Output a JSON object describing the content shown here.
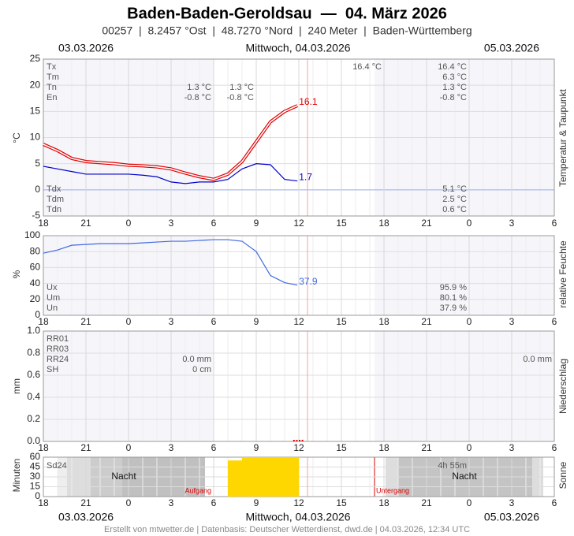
{
  "header": {
    "title": "Baden-Baden-Geroldsau  —  04. März 2026",
    "subtitle": "00257  |  8.2457 °Ost  |  48.7270 °Nord  |  240 Meter  |  Baden-Württemberg",
    "dates_top": [
      "03.03.2026",
      "Mittwoch, 04.03.2026",
      "05.03.2026"
    ],
    "dates_bottom": [
      "03.03.2026",
      "Mittwoch, 04.03.2026",
      "05.03.2026"
    ],
    "footer": "Erstellt von mtwetter.de | Datenbasis: Deutscher Wetterdienst, dwd.de | 04.03.2026, 12:34 UTC"
  },
  "chart_data": [
    {
      "type": "line",
      "ylabel": "°C",
      "side_label": "Temperatur & Taupunkt",
      "xlim": [
        0,
        36
      ],
      "xticks": [
        {
          "value": 0,
          "label": "18"
        },
        {
          "value": 3,
          "label": "21"
        },
        {
          "value": 6,
          "label": "0"
        },
        {
          "value": 9,
          "label": "3"
        },
        {
          "value": 12,
          "label": "6"
        },
        {
          "value": 15,
          "label": "9"
        },
        {
          "value": 18,
          "label": "12"
        },
        {
          "value": 21,
          "label": "15"
        },
        {
          "value": 24,
          "label": "18"
        },
        {
          "value": 27,
          "label": "21"
        },
        {
          "value": 30,
          "label": "0"
        },
        {
          "value": 33,
          "label": "3"
        },
        {
          "value": 36,
          "label": "6"
        }
      ],
      "ylim": [
        -5,
        25
      ],
      "yticks": [
        -5,
        0,
        5,
        10,
        15,
        20,
        25
      ],
      "grid": true,
      "x": [
        0,
        1,
        2,
        3,
        4,
        5,
        6,
        7,
        8,
        9,
        10,
        11,
        12,
        13,
        14,
        15,
        16,
        17,
        17.9
      ],
      "series": [
        {
          "color": "#e00000",
          "values": [
            8.7,
            7.5,
            6.0,
            5.4,
            5.2,
            5.0,
            4.7,
            4.6,
            4.4,
            4.0,
            3.2,
            2.5,
            2.0,
            3.0,
            5.4,
            9.2,
            13.0,
            15.0,
            16.1
          ]
        },
        {
          "color": "#0000cc",
          "values": [
            4.5,
            4.0,
            3.5,
            3.0,
            3.0,
            3.0,
            3.0,
            2.8,
            2.5,
            1.5,
            1.2,
            1.5,
            1.5,
            2.0,
            4.0,
            5.0,
            4.8,
            2.0,
            1.7
          ]
        }
      ],
      "annotations": [
        "Tx",
        "Tm",
        "Tn",
        "En",
        "1.3 °C",
        "-0.8 °C",
        "1.3 °C",
        "-0.8 °C",
        "16.4 °C",
        "16.4 °C",
        "6.3 °C",
        "1.3 °C",
        "-0.8 °C",
        "Tdx",
        "Tdm",
        "Tdn",
        "5.1 °C",
        "2.5 °C",
        "0.6 °C"
      ]
    },
    {
      "type": "line",
      "ylabel": "%",
      "side_label": "relative Feuchte",
      "xlim": [
        0,
        36
      ],
      "xticks": [
        {
          "value": 0,
          "label": "18"
        },
        {
          "value": 3,
          "label": "21"
        },
        {
          "value": 6,
          "label": "0"
        },
        {
          "value": 9,
          "label": "3"
        },
        {
          "value": 12,
          "label": "6"
        },
        {
          "value": 15,
          "label": "9"
        },
        {
          "value": 18,
          "label": "12"
        },
        {
          "value": 21,
          "label": "15"
        },
        {
          "value": 24,
          "label": "18"
        },
        {
          "value": 27,
          "label": "21"
        },
        {
          "value": 30,
          "label": "0"
        },
        {
          "value": 33,
          "label": "3"
        },
        {
          "value": 36,
          "label": "6"
        }
      ],
      "ylim": [
        0,
        100
      ],
      "yticks": [
        0,
        20,
        40,
        60,
        80,
        100
      ],
      "grid": true,
      "x": [
        0,
        1,
        2,
        3,
        4,
        5,
        6,
        7,
        8,
        9,
        10,
        11,
        12,
        13,
        14,
        15,
        16,
        17,
        17.9
      ],
      "series": [
        {
          "color": "#4169e1",
          "values": [
            78,
            82,
            88,
            89,
            90,
            90,
            90,
            91,
            92,
            93,
            93,
            94,
            95,
            95,
            93,
            80,
            50,
            41,
            37.9
          ]
        }
      ],
      "annotations": [
        "Ux",
        "Um",
        "Un",
        "95.9 %",
        "80.1 %",
        "37.9 %"
      ]
    },
    {
      "type": "bar",
      "ylabel": "mm",
      "side_label": "Niederschlag",
      "xlim": [
        0,
        36
      ],
      "xticks": [
        {
          "value": 0,
          "label": "18"
        },
        {
          "value": 3,
          "label": "21"
        },
        {
          "value": 6,
          "label": "0"
        },
        {
          "value": 9,
          "label": "3"
        },
        {
          "value": 12,
          "label": "6"
        },
        {
          "value": 15,
          "label": "9"
        },
        {
          "value": 18,
          "label": "12"
        },
        {
          "value": 21,
          "label": "15"
        },
        {
          "value": 24,
          "label": "18"
        },
        {
          "value": 27,
          "label": "21"
        },
        {
          "value": 30,
          "label": "0"
        },
        {
          "value": 33,
          "label": "3"
        },
        {
          "value": 36,
          "label": "6"
        }
      ],
      "ylim": [
        0,
        1
      ],
      "yticks": [
        {
          "value": 0,
          "label": "0.0"
        },
        {
          "value": 0.2,
          "label": "0.2"
        },
        {
          "value": 0.4,
          "label": "0.4"
        },
        {
          "value": 0.6,
          "label": "0.6"
        },
        {
          "value": 0.8,
          "label": "0.8"
        },
        {
          "value": 1,
          "label": "1.0"
        }
      ],
      "grid": true,
      "x": [
        17.6,
        17.8,
        18.0,
        18.2
      ],
      "color": "#e00000",
      "values": [
        0,
        0,
        0,
        0
      ],
      "annotations": [
        "RR01",
        "RR03",
        "RR24",
        "SH",
        "0.0 mm",
        "0 cm",
        "0.0 mm"
      ]
    },
    {
      "type": "bar",
      "ylabel": "Minuten",
      "side_label": "Sonne",
      "xlim": [
        0,
        36
      ],
      "xticks": [
        {
          "value": 0,
          "label": "18"
        },
        {
          "value": 3,
          "label": "21"
        },
        {
          "value": 6,
          "label": "0"
        },
        {
          "value": 9,
          "label": "3"
        },
        {
          "value": 12,
          "label": "6"
        },
        {
          "value": 15,
          "label": "9"
        },
        {
          "value": 18,
          "label": "12"
        },
        {
          "value": 21,
          "label": "15"
        },
        {
          "value": 24,
          "label": "18"
        },
        {
          "value": 27,
          "label": "21"
        },
        {
          "value": 30,
          "label": "0"
        },
        {
          "value": 33,
          "label": "3"
        },
        {
          "value": 36,
          "label": "6"
        }
      ],
      "ylim": [
        0,
        60
      ],
      "yticks": [
        0,
        15,
        30,
        45,
        60
      ],
      "grid": true,
      "x": [
        13,
        14,
        15,
        16,
        17
      ],
      "color": "#ffd700",
      "values": [
        55,
        60,
        60,
        60,
        60
      ],
      "annotations": [
        "Sd24",
        "4h 55m",
        "Nacht",
        "Nacht",
        "Aufgang",
        "Untergang"
      ]
    }
  ]
}
